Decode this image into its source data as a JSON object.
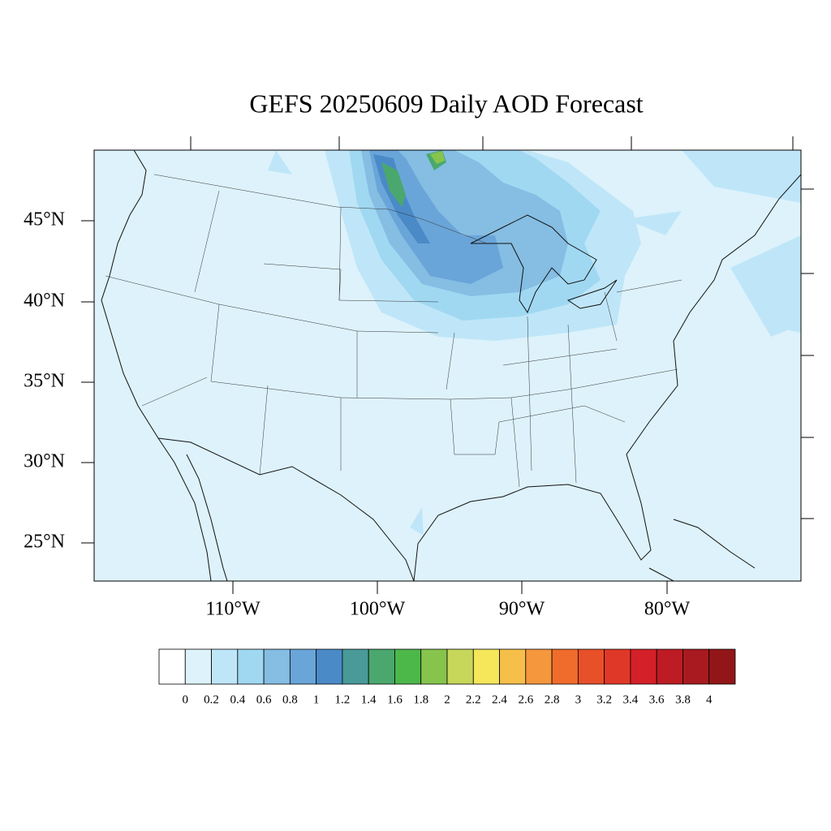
{
  "title": "GEFS 20250609 Daily AOD Forecast",
  "map": {
    "lat_labels": [
      "45°N",
      "40°N",
      "35°N",
      "30°N",
      "25°N"
    ],
    "lon_labels": [
      "110°W",
      "100°W",
      "90°W",
      "80°W"
    ]
  },
  "colorbar": {
    "colors": [
      "#ffffff",
      "#ddf2fb",
      "#bfe6f8",
      "#a0d8f2",
      "#85bde3",
      "#6aa5d9",
      "#4a8ac7",
      "#4a9a9a",
      "#4aa86e",
      "#4db84a",
      "#86c44c",
      "#c6d75a",
      "#f5e65a",
      "#f6bf4a",
      "#f5973c",
      "#f06c2c",
      "#e8502a",
      "#e03828",
      "#d42028",
      "#bd1c24",
      "#a81a20",
      "#921618"
    ],
    "ticks": [
      0,
      0.2,
      0.4,
      0.6,
      0.8,
      1,
      1.2,
      1.4,
      1.6,
      1.8,
      2,
      2.2,
      2.4,
      2.6,
      2.8,
      3,
      3.2,
      3.4,
      3.6,
      3.8,
      4
    ]
  }
}
